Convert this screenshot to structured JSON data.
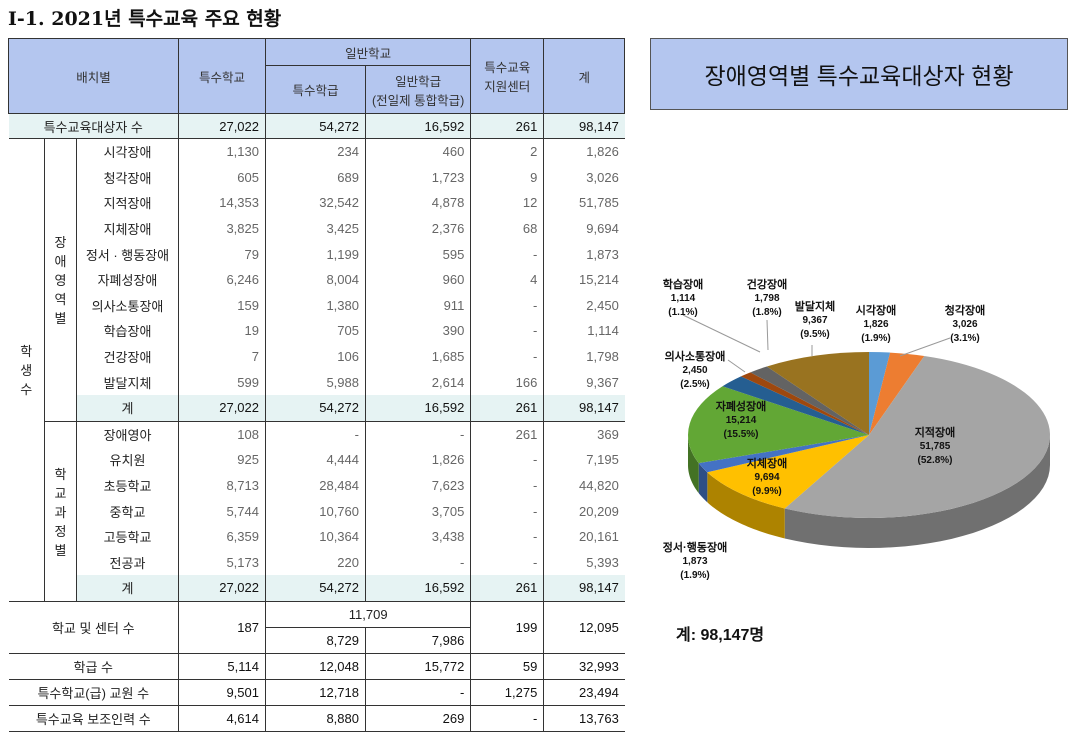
{
  "doc_title": "Ⅰ-1. 2021년 특수교육 주요 현황",
  "table": {
    "headers": {
      "placement": "배치별",
      "special_school": "특수학교",
      "general_school": "일반학교",
      "special_class": "특수학급",
      "general_class": "일반학급",
      "general_class_sub": "(전일제 통합학급)",
      "support_center_1": "특수교육",
      "support_center_2": "지원센터",
      "total": "계"
    },
    "total_row": {
      "label": "특수교육대상자 수",
      "values": [
        "27,022",
        "54,272",
        "16,592",
        "261",
        "98,147"
      ]
    },
    "students_label": "학생수",
    "disability_group_label": "장애영역별",
    "disability_rows": [
      {
        "label": "시각장애",
        "values": [
          "1,130",
          "234",
          "460",
          "2",
          "1,826"
        ]
      },
      {
        "label": "청각장애",
        "values": [
          "605",
          "689",
          "1,723",
          "9",
          "3,026"
        ]
      },
      {
        "label": "지적장애",
        "values": [
          "14,353",
          "32,542",
          "4,878",
          "12",
          "51,785"
        ]
      },
      {
        "label": "지체장애",
        "values": [
          "3,825",
          "3,425",
          "2,376",
          "68",
          "9,694"
        ]
      },
      {
        "label": "정서 · 행동장애",
        "values": [
          "79",
          "1,199",
          "595",
          "-",
          "1,873"
        ]
      },
      {
        "label": "자폐성장애",
        "values": [
          "6,246",
          "8,004",
          "960",
          "4",
          "15,214"
        ]
      },
      {
        "label": "의사소통장애",
        "values": [
          "159",
          "1,380",
          "911",
          "-",
          "2,450"
        ]
      },
      {
        "label": "학습장애",
        "values": [
          "19",
          "705",
          "390",
          "-",
          "1,114"
        ]
      },
      {
        "label": "건강장애",
        "values": [
          "7",
          "106",
          "1,685",
          "-",
          "1,798"
        ]
      },
      {
        "label": "발달지체",
        "values": [
          "599",
          "5,988",
          "2,614",
          "166",
          "9,367"
        ]
      }
    ],
    "disability_sum": {
      "label": "계",
      "values": [
        "27,022",
        "54,272",
        "16,592",
        "261",
        "98,147"
      ]
    },
    "level_group_label": "학교과정별",
    "level_rows": [
      {
        "label": "장애영아",
        "values": [
          "108",
          "-",
          "-",
          "261",
          "369"
        ]
      },
      {
        "label": "유치원",
        "values": [
          "925",
          "4,444",
          "1,826",
          "-",
          "7,195"
        ]
      },
      {
        "label": "초등학교",
        "values": [
          "8,713",
          "28,484",
          "7,623",
          "-",
          "44,820"
        ]
      },
      {
        "label": "중학교",
        "values": [
          "5,744",
          "10,760",
          "3,705",
          "-",
          "20,209"
        ]
      },
      {
        "label": "고등학교",
        "values": [
          "6,359",
          "10,364",
          "3,438",
          "-",
          "20,161"
        ]
      },
      {
        "label": "전공과",
        "values": [
          "5,173",
          "220",
          "-",
          "-",
          "5,393"
        ]
      }
    ],
    "level_sum": {
      "label": "계",
      "values": [
        "27,022",
        "54,272",
        "16,592",
        "261",
        "98,147"
      ]
    },
    "school_count": {
      "label": "학교 및 센터 수",
      "special_school": "187",
      "general_total": "11,709",
      "special_class": "8,729",
      "general_class": "7,986",
      "center": "199",
      "total": "12,095"
    },
    "bottom_rows": [
      {
        "label": "학급 수",
        "values": [
          "5,114",
          "12,048",
          "15,772",
          "59",
          "32,993"
        ]
      },
      {
        "label": "특수학교(급) 교원 수",
        "values": [
          "9,501",
          "12,718",
          "-",
          "1,275",
          "23,494"
        ]
      },
      {
        "label": "특수교육 보조인력 수",
        "values": [
          "4,614",
          "8,880",
          "269",
          "-",
          "13,763"
        ]
      }
    ]
  },
  "chart_data": {
    "type": "pie",
    "title": "장애영역별 특수교육대상자 현황",
    "total_note": "계: 98,147명",
    "slices": [
      {
        "name": "시각장애",
        "value": 1826,
        "value_label": "1,826",
        "pct_label": "(1.9%)",
        "color": "#5b9bd5"
      },
      {
        "name": "청각장애",
        "value": 3026,
        "value_label": "3,026",
        "pct_label": "(3.1%)",
        "color": "#ed7d31"
      },
      {
        "name": "지적장애",
        "value": 51785,
        "value_label": "51,785",
        "pct_label": "(52.8%)",
        "color": "#a5a5a5"
      },
      {
        "name": "지체장애",
        "value": 9694,
        "value_label": "9,694",
        "pct_label": "(9.9%)",
        "color": "#ffc000"
      },
      {
        "name": "정서·행동장애",
        "value": 1873,
        "value_label": "1,873",
        "pct_label": "(1.9%)",
        "color": "#4472c4"
      },
      {
        "name": "자폐성장애",
        "value": 15214,
        "value_label": "15,214",
        "pct_label": "(15.5%)",
        "color": "#62a735"
      },
      {
        "name": "의사소통장애",
        "value": 2450,
        "value_label": "2,450",
        "pct_label": "(2.5%)",
        "color": "#255e91"
      },
      {
        "name": "학습장애",
        "value": 1114,
        "value_label": "1,114",
        "pct_label": "(1.1%)",
        "color": "#9e480e"
      },
      {
        "name": "건강장애",
        "value": 1798,
        "value_label": "1,798",
        "pct_label": "(1.8%)",
        "color": "#636363"
      },
      {
        "name": "발달지체",
        "value": 9367,
        "value_label": "9,367",
        "pct_label": "(9.5%)",
        "color": "#997320"
      }
    ]
  }
}
